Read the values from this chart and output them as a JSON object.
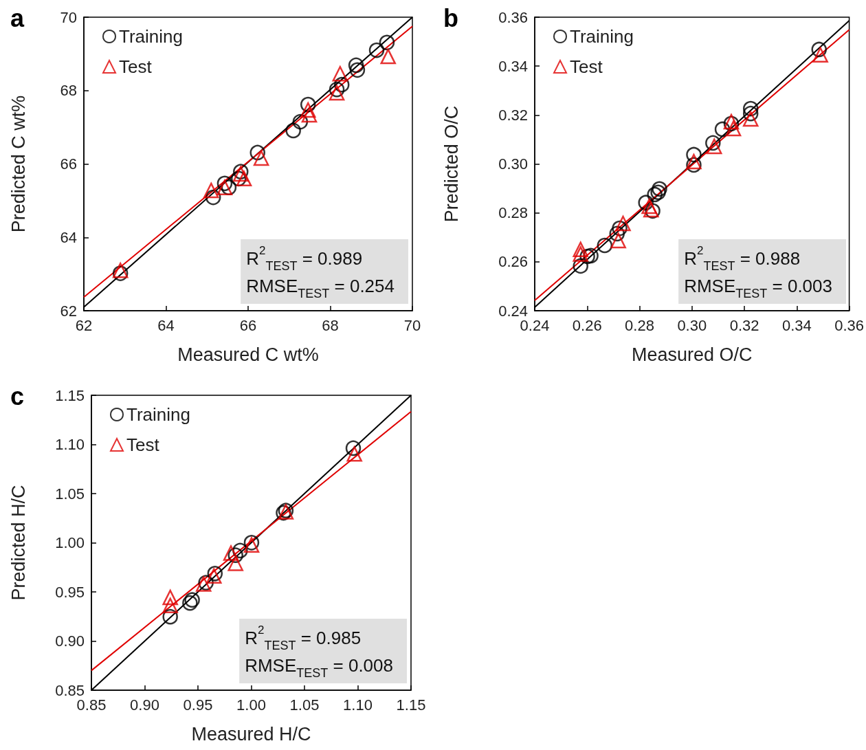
{
  "chart_data": [
    {
      "type": "scatter",
      "title": "a",
      "xlabel": "Measured C wt%",
      "ylabel": "Predicted C wt%",
      "xlim": [
        62,
        70
      ],
      "ylim": [
        62,
        70
      ],
      "xticks": [
        62,
        64,
        66,
        68,
        70
      ],
      "yticks": [
        62,
        64,
        66,
        68,
        70
      ],
      "legend": "top left",
      "annotations": [
        "R$^{2}$$_{TEST}$ = 0.989",
        "RMSE$_{TEST}$ = 0.254"
      ],
      "series": [
        {
          "name": "Training",
          "color": "#000000",
          "marker": "circle",
          "x": [
            62.89,
            65.15,
            65.43,
            65.53,
            65.82,
            65.77,
            66.23,
            67.1,
            67.27,
            67.46,
            68.16,
            68.28,
            68.63,
            68.66,
            69.13,
            69.38
          ],
          "values": [
            63.02,
            65.09,
            65.47,
            65.36,
            65.79,
            65.6,
            66.31,
            66.91,
            67.15,
            67.62,
            68.03,
            68.16,
            68.69,
            68.56,
            69.1,
            69.31
          ]
        },
        {
          "name": "Test",
          "color": "#e00000",
          "marker": "triangle",
          "x": [
            62.89,
            65.1,
            65.43,
            65.82,
            65.9,
            66.32,
            67.46,
            67.49,
            68.16,
            68.24,
            69.41
          ],
          "values": [
            63.1,
            65.28,
            65.36,
            65.73,
            65.6,
            66.16,
            67.47,
            67.34,
            67.94,
            68.46,
            68.93
          ]
        },
        {
          "type": "line",
          "color": "#000000",
          "x": [
            62,
            70
          ],
          "values": [
            62.1,
            70
          ]
        },
        {
          "type": "line",
          "color": "#e00000",
          "x": [
            62,
            70
          ],
          "values": [
            62.37,
            69.75
          ]
        }
      ]
    },
    {
      "type": "scatter",
      "title": "b",
      "xlabel": "Measured O/C",
      "ylabel": "Predicted O/C",
      "xlim": [
        0.24,
        0.36
      ],
      "ylim": [
        0.24,
        0.36
      ],
      "xticks": [
        0.24,
        0.26,
        0.28,
        {
          "value": 0.3,
          "label": "0.30"
        },
        0.32,
        0.34,
        0.36
      ],
      "yticks": [
        0.24,
        0.26,
        0.28,
        {
          "value": 0.3,
          "label": "0.30"
        },
        0.32,
        0.34,
        0.36
      ],
      "legend": "top left",
      "annotations": [
        "R$^{2}$$_{TEST}$ = 0.988",
        "RMSE$_{TEST}$ = 0.003"
      ],
      "series": [
        {
          "name": "Training",
          "color": "#000000",
          "marker": "circle",
          "x": [
            0.2575,
            0.2601,
            0.2614,
            0.2667,
            0.2714,
            0.2724,
            0.2824,
            0.285,
            0.2858,
            0.2876,
            0.2871,
            0.3007,
            0.3007,
            0.308,
            0.3116,
            0.315,
            0.3224,
            0.3224,
            0.3485
          ],
          "values": [
            0.2583,
            0.2622,
            0.2625,
            0.2667,
            0.2715,
            0.2737,
            0.2842,
            0.2808,
            0.2875,
            0.2898,
            0.2884,
            0.3038,
            0.2996,
            0.3086,
            0.3142,
            0.3165,
            0.3226,
            0.3206,
            0.3468
          ]
        },
        {
          "name": "Test",
          "color": "#e00000",
          "marker": "triangle",
          "x": [
            0.2575,
            0.2575,
            0.2719,
            0.2737,
            0.2837,
            0.2844,
            0.3007,
            0.3085,
            0.315,
            0.3158,
            0.3224,
            0.349
          ],
          "values": [
            0.2651,
            0.2632,
            0.2687,
            0.2757,
            0.2827,
            0.2813,
            0.301,
            0.3072,
            0.3173,
            0.3145,
            0.3184,
            0.3446
          ]
        },
        {
          "type": "line",
          "color": "#000000",
          "x": [
            0.24,
            0.36
          ],
          "values": [
            0.2414,
            0.3586
          ]
        },
        {
          "type": "line",
          "color": "#e00000",
          "x": [
            0.24,
            0.36
          ],
          "values": [
            0.2442,
            0.3549
          ]
        }
      ]
    },
    {
      "type": "scatter",
      "title": "c",
      "xlabel": "Measured H/C",
      "ylabel": "Predicted H/C",
      "xlim": [
        0.85,
        1.15
      ],
      "ylim": [
        0.85,
        1.15
      ],
      "xticks": [
        0.85,
        {
          "value": 0.9,
          "label": "0.90"
        },
        0.95,
        {
          "value": 1,
          "label": "1.00"
        },
        1.05,
        {
          "value": 1.1,
          "label": "1.10"
        },
        1.15
      ],
      "yticks": [
        0.85,
        {
          "value": 0.9,
          "label": "0.90"
        },
        0.95,
        {
          "value": 1,
          "label": "1.00"
        },
        1.05,
        {
          "value": 1.1,
          "label": "1.10"
        },
        1.15
      ],
      "legend": "top left",
      "annotations": [
        "R$^{2}$$_{TEST}$ = 0.985",
        "RMSE$_{TEST}$ = 0.008"
      ],
      "series": [
        {
          "name": "Training",
          "color": "#000000",
          "marker": "circle",
          "x": [
            0.924,
            0.9425,
            0.9446,
            0.9575,
            0.966,
            0.9853,
            0.9896,
            1.0003,
            1.0303,
            1.0325,
            1.0958
          ],
          "values": [
            0.9247,
            0.9387,
            0.9418,
            0.9593,
            0.9687,
            0.9873,
            0.992,
            1.0001,
            1.0304,
            1.0327,
            1.0962
          ]
        },
        {
          "name": "Test",
          "color": "#e00000",
          "marker": "triangle",
          "x": [
            0.924,
            0.924,
            0.9553,
            0.965,
            0.981,
            0.9853,
            1.0003,
            1.0325,
            1.0969
          ],
          "values": [
            0.9444,
            0.9362,
            0.958,
            0.9662,
            0.9895,
            0.979,
            0.9978,
            1.0315,
            1.0903
          ]
        },
        {
          "type": "line",
          "color": "#000000",
          "x": [
            0.85,
            1.15
          ],
          "values": [
            0.85,
            1.15
          ]
        },
        {
          "type": "line",
          "color": "#e00000",
          "x": [
            0.85,
            1.15
          ],
          "values": [
            0.87,
            1.1334
          ]
        }
      ]
    }
  ]
}
